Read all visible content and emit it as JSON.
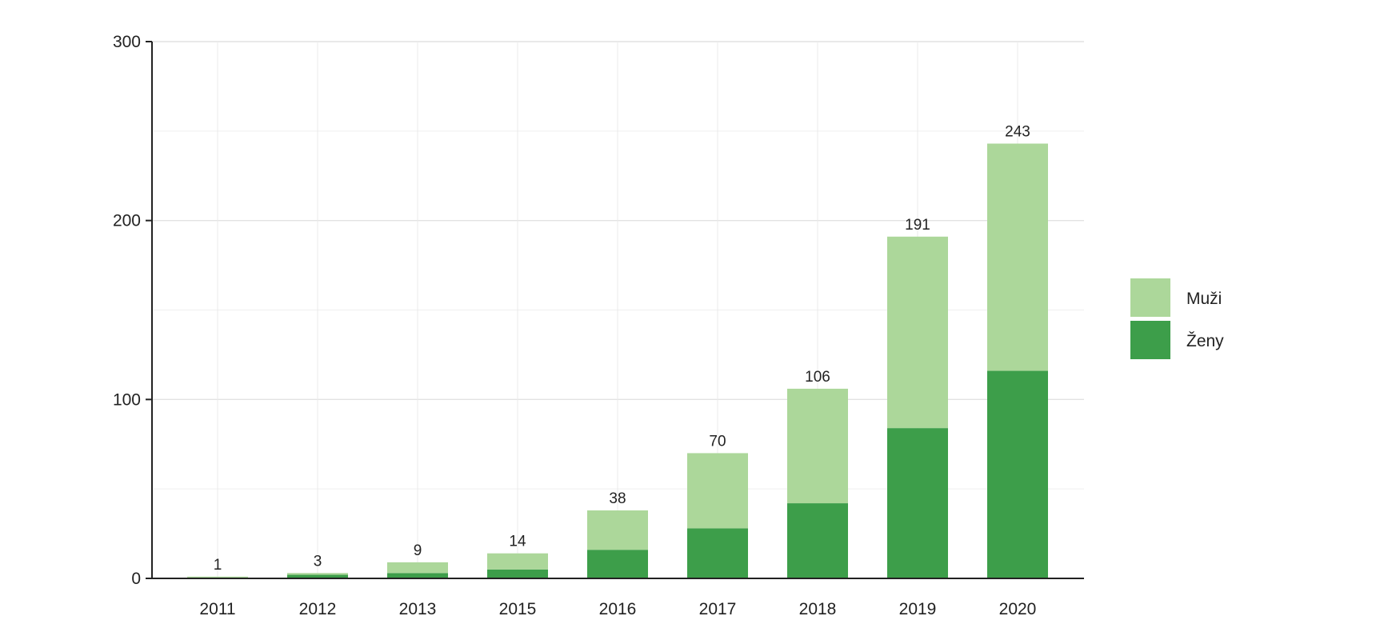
{
  "chart_data": {
    "type": "bar",
    "stacked": true,
    "categories": [
      "2011",
      "2012",
      "2013",
      "2015",
      "2016",
      "2017",
      "2018",
      "2019",
      "2020"
    ],
    "series": [
      {
        "name": "Ženy",
        "color": "#3d9e4a",
        "values": [
          0,
          2,
          3,
          5,
          16,
          28,
          42,
          84,
          116
        ]
      },
      {
        "name": "Muži",
        "color": "#acd79a",
        "values": [
          1,
          1,
          6,
          9,
          22,
          42,
          64,
          107,
          127
        ]
      }
    ],
    "totals": [
      "1",
      "3",
      "9",
      "14",
      "38",
      "70",
      "106",
      "191",
      "243"
    ],
    "ylim": [
      0,
      300
    ],
    "yticks": [
      "0",
      "100",
      "200",
      "300"
    ],
    "grid": true,
    "legend_position": "right",
    "legend": [
      "Muži",
      "Ženy"
    ]
  }
}
